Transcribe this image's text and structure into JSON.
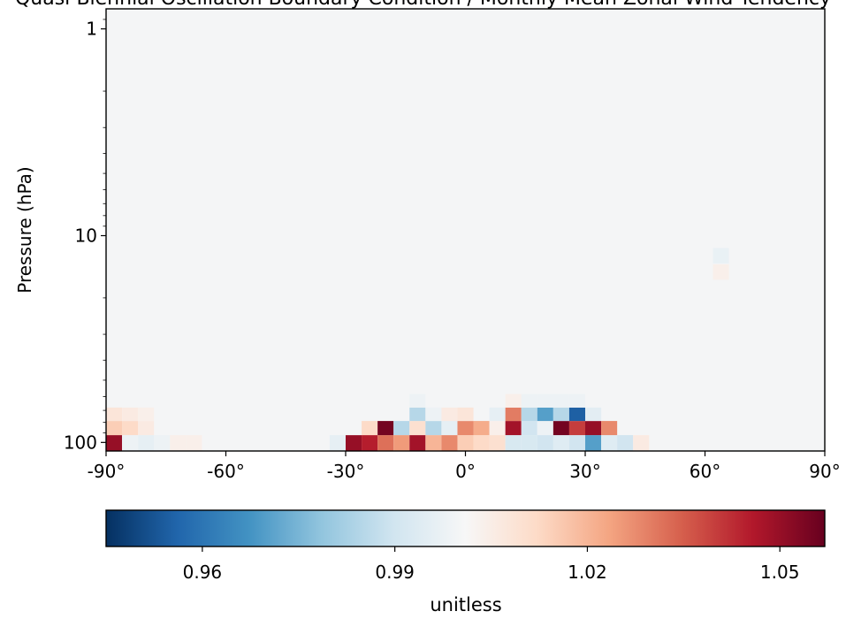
{
  "chart_data": {
    "type": "heatmap",
    "title": "Quasi-Biennial Oscillation Boundary Condition / Monthly Mean Zonal Wind Tendency Diagnostic",
    "ylabel": "Pressure (hPa)",
    "colorbar_label": "unitless",
    "colormap": "RdBu_r",
    "vmin": 0.945,
    "vmax": 1.057,
    "x_ticks": [
      "-90°",
      "-60°",
      "-30°",
      "0°",
      "30°",
      "60°",
      "90°"
    ],
    "y_ticks": [
      "1",
      "10",
      "100"
    ],
    "colorbar_ticks": [
      "0.96",
      "0.99",
      "1.02",
      "1.05"
    ],
    "y_scale": "log",
    "xlim": [
      -90,
      90
    ],
    "ylim_hpa": [
      110,
      0.8
    ],
    "background_value": 1.0,
    "cells": [
      {
        "lat": -88,
        "p": 100,
        "v": 1.05
      },
      {
        "lat": -84,
        "p": 100,
        "v": 0.998
      },
      {
        "lat": -80,
        "p": 100,
        "v": 0.996
      },
      {
        "lat": -76,
        "p": 100,
        "v": 0.998
      },
      {
        "lat": -72,
        "p": 100,
        "v": 1.004
      },
      {
        "lat": -68,
        "p": 100,
        "v": 1.004
      },
      {
        "lat": -88,
        "p": 85,
        "v": 1.015
      },
      {
        "lat": -84,
        "p": 85,
        "v": 1.012
      },
      {
        "lat": -80,
        "p": 85,
        "v": 1.006
      },
      {
        "lat": -88,
        "p": 73,
        "v": 1.008
      },
      {
        "lat": -84,
        "p": 73,
        "v": 1.006
      },
      {
        "lat": -80,
        "p": 73,
        "v": 1.004
      },
      {
        "lat": -32,
        "p": 100,
        "v": 0.996
      },
      {
        "lat": -28,
        "p": 100,
        "v": 1.05
      },
      {
        "lat": -24,
        "p": 100,
        "v": 1.045
      },
      {
        "lat": -20,
        "p": 100,
        "v": 1.032
      },
      {
        "lat": -16,
        "p": 100,
        "v": 1.025
      },
      {
        "lat": -12,
        "p": 100,
        "v": 1.048
      },
      {
        "lat": -8,
        "p": 100,
        "v": 1.02
      },
      {
        "lat": -4,
        "p": 100,
        "v": 1.028
      },
      {
        "lat": 0,
        "p": 100,
        "v": 1.015
      },
      {
        "lat": 4,
        "p": 100,
        "v": 1.012
      },
      {
        "lat": 8,
        "p": 100,
        "v": 1.01
      },
      {
        "lat": 12,
        "p": 100,
        "v": 0.992
      },
      {
        "lat": 16,
        "p": 100,
        "v": 0.992
      },
      {
        "lat": 20,
        "p": 100,
        "v": 0.99
      },
      {
        "lat": 24,
        "p": 100,
        "v": 0.994
      },
      {
        "lat": 28,
        "p": 100,
        "v": 0.99
      },
      {
        "lat": 32,
        "p": 100,
        "v": 0.97
      },
      {
        "lat": 36,
        "p": 100,
        "v": 0.994
      },
      {
        "lat": 40,
        "p": 100,
        "v": 0.99
      },
      {
        "lat": 44,
        "p": 100,
        "v": 1.006
      },
      {
        "lat": -28,
        "p": 85,
        "v": 1.0
      },
      {
        "lat": -24,
        "p": 85,
        "v": 1.012
      },
      {
        "lat": -20,
        "p": 85,
        "v": 1.055
      },
      {
        "lat": -16,
        "p": 85,
        "v": 0.985
      },
      {
        "lat": -12,
        "p": 85,
        "v": 1.01
      },
      {
        "lat": -8,
        "p": 85,
        "v": 0.985
      },
      {
        "lat": -4,
        "p": 85,
        "v": 0.996
      },
      {
        "lat": 0,
        "p": 85,
        "v": 1.028
      },
      {
        "lat": 4,
        "p": 85,
        "v": 1.022
      },
      {
        "lat": 8,
        "p": 85,
        "v": 1.004
      },
      {
        "lat": 12,
        "p": 85,
        "v": 1.048
      },
      {
        "lat": 16,
        "p": 85,
        "v": 0.99
      },
      {
        "lat": 20,
        "p": 85,
        "v": 0.998
      },
      {
        "lat": 24,
        "p": 85,
        "v": 1.055
      },
      {
        "lat": 28,
        "p": 85,
        "v": 1.04
      },
      {
        "lat": 32,
        "p": 85,
        "v": 1.05
      },
      {
        "lat": 36,
        "p": 85,
        "v": 1.028
      },
      {
        "lat": -12,
        "p": 73,
        "v": 0.985
      },
      {
        "lat": -8,
        "p": 73,
        "v": 0.998
      },
      {
        "lat": -4,
        "p": 73,
        "v": 1.006
      },
      {
        "lat": 0,
        "p": 73,
        "v": 1.008
      },
      {
        "lat": 8,
        "p": 73,
        "v": 0.996
      },
      {
        "lat": 12,
        "p": 73,
        "v": 1.03
      },
      {
        "lat": 16,
        "p": 73,
        "v": 0.985
      },
      {
        "lat": 20,
        "p": 73,
        "v": 0.97
      },
      {
        "lat": 24,
        "p": 73,
        "v": 0.985
      },
      {
        "lat": 28,
        "p": 73,
        "v": 0.955
      },
      {
        "lat": 32,
        "p": 73,
        "v": 0.995
      },
      {
        "lat": -12,
        "p": 63,
        "v": 0.998
      },
      {
        "lat": 12,
        "p": 63,
        "v": 1.004
      },
      {
        "lat": 16,
        "p": 63,
        "v": 0.998
      },
      {
        "lat": 20,
        "p": 63,
        "v": 0.998
      },
      {
        "lat": 24,
        "p": 63,
        "v": 0.998
      },
      {
        "lat": 28,
        "p": 63,
        "v": 0.998
      },
      {
        "lat": 64,
        "p": 12.5,
        "v": 0.997
      },
      {
        "lat": 64,
        "p": 15,
        "v": 1.004
      }
    ]
  }
}
